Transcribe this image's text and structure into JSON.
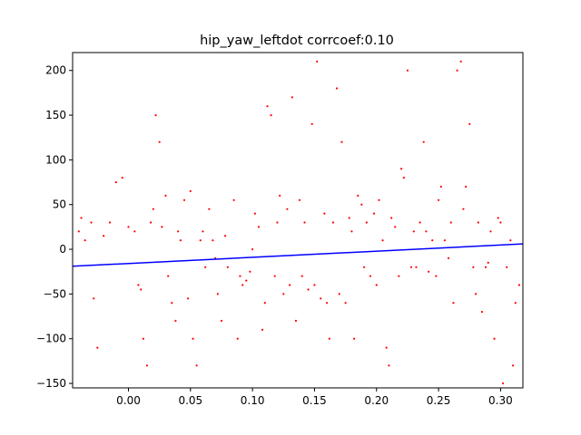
{
  "chart_data": {
    "type": "scatter",
    "title": "hip_yaw_leftdot corrcoef:0.10",
    "xlim": [
      -0.045,
      0.318
    ],
    "ylim": [
      -155,
      220
    ],
    "x_ticks": [
      0.0,
      0.05,
      0.1,
      0.15,
      0.2,
      0.25,
      0.3
    ],
    "x_tick_labels": [
      "0.00",
      "0.05",
      "0.10",
      "0.15",
      "0.20",
      "0.25",
      "0.30"
    ],
    "y_ticks": [
      -150,
      -100,
      -50,
      0,
      50,
      100,
      150,
      200
    ],
    "y_tick_labels": [
      "−150",
      "−100",
      "−50",
      "0",
      "50",
      "100",
      "150",
      "200"
    ],
    "grid": false,
    "series": [
      {
        "kind": "scatter",
        "color": "#ff0000",
        "description_of_distribution": "dense scatter",
        "points": [
          [
            -0.04,
            20
          ],
          [
            -0.038,
            35
          ],
          [
            -0.035,
            10
          ],
          [
            -0.03,
            30
          ],
          [
            -0.028,
            -55
          ],
          [
            -0.025,
            -110
          ],
          [
            -0.02,
            15
          ],
          [
            -0.015,
            30
          ],
          [
            -0.01,
            75
          ],
          [
            -0.005,
            80
          ],
          [
            0.0,
            25
          ],
          [
            0.005,
            20
          ],
          [
            0.008,
            -40
          ],
          [
            0.01,
            -45
          ],
          [
            0.012,
            -100
          ],
          [
            0.015,
            -130
          ],
          [
            0.018,
            30
          ],
          [
            0.02,
            45
          ],
          [
            0.022,
            150
          ],
          [
            0.025,
            120
          ],
          [
            0.027,
            25
          ],
          [
            0.03,
            60
          ],
          [
            0.032,
            -30
          ],
          [
            0.035,
            -60
          ],
          [
            0.038,
            -80
          ],
          [
            0.04,
            20
          ],
          [
            0.042,
            10
          ],
          [
            0.045,
            55
          ],
          [
            0.048,
            -55
          ],
          [
            0.05,
            65
          ],
          [
            0.052,
            -100
          ],
          [
            0.055,
            -130
          ],
          [
            0.058,
            10
          ],
          [
            0.06,
            20
          ],
          [
            0.062,
            -20
          ],
          [
            0.065,
            45
          ],
          [
            0.068,
            10
          ],
          [
            0.07,
            -10
          ],
          [
            0.072,
            -50
          ],
          [
            0.075,
            -80
          ],
          [
            0.078,
            15
          ],
          [
            0.08,
            -20
          ],
          [
            0.085,
            55
          ],
          [
            0.088,
            -100
          ],
          [
            0.09,
            -30
          ],
          [
            0.092,
            -40
          ],
          [
            0.095,
            -35
          ],
          [
            0.098,
            -25
          ],
          [
            0.1,
            0
          ],
          [
            0.102,
            40
          ],
          [
            0.105,
            25
          ],
          [
            0.108,
            -90
          ],
          [
            0.11,
            -60
          ],
          [
            0.112,
            160
          ],
          [
            0.115,
            150
          ],
          [
            0.118,
            -30
          ],
          [
            0.12,
            30
          ],
          [
            0.122,
            60
          ],
          [
            0.125,
            -50
          ],
          [
            0.128,
            45
          ],
          [
            0.13,
            -40
          ],
          [
            0.132,
            170
          ],
          [
            0.135,
            -80
          ],
          [
            0.138,
            55
          ],
          [
            0.14,
            -30
          ],
          [
            0.142,
            30
          ],
          [
            0.145,
            -45
          ],
          [
            0.148,
            140
          ],
          [
            0.15,
            -40
          ],
          [
            0.152,
            210
          ],
          [
            0.155,
            -55
          ],
          [
            0.158,
            40
          ],
          [
            0.16,
            -60
          ],
          [
            0.162,
            -100
          ],
          [
            0.165,
            30
          ],
          [
            0.168,
            180
          ],
          [
            0.17,
            -50
          ],
          [
            0.172,
            120
          ],
          [
            0.175,
            -60
          ],
          [
            0.178,
            35
          ],
          [
            0.18,
            20
          ],
          [
            0.182,
            -100
          ],
          [
            0.185,
            60
          ],
          [
            0.188,
            50
          ],
          [
            0.19,
            -20
          ],
          [
            0.192,
            30
          ],
          [
            0.195,
            -30
          ],
          [
            0.198,
            40
          ],
          [
            0.2,
            -40
          ],
          [
            0.202,
            55
          ],
          [
            0.205,
            10
          ],
          [
            0.208,
            -110
          ],
          [
            0.21,
            -130
          ],
          [
            0.212,
            35
          ],
          [
            0.215,
            25
          ],
          [
            0.218,
            -30
          ],
          [
            0.22,
            90
          ],
          [
            0.222,
            80
          ],
          [
            0.225,
            200
          ],
          [
            0.228,
            -20
          ],
          [
            0.23,
            20
          ],
          [
            0.232,
            -20
          ],
          [
            0.235,
            30
          ],
          [
            0.238,
            120
          ],
          [
            0.24,
            20
          ],
          [
            0.242,
            -25
          ],
          [
            0.245,
            10
          ],
          [
            0.248,
            -30
          ],
          [
            0.25,
            55
          ],
          [
            0.252,
            70
          ],
          [
            0.255,
            10
          ],
          [
            0.258,
            -10
          ],
          [
            0.26,
            30
          ],
          [
            0.262,
            -60
          ],
          [
            0.265,
            200
          ],
          [
            0.268,
            210
          ],
          [
            0.27,
            45
          ],
          [
            0.272,
            70
          ],
          [
            0.275,
            140
          ],
          [
            0.278,
            -20
          ],
          [
            0.28,
            -50
          ],
          [
            0.282,
            30
          ],
          [
            0.285,
            -70
          ],
          [
            0.288,
            -20
          ],
          [
            0.29,
            -15
          ],
          [
            0.292,
            20
          ],
          [
            0.295,
            -100
          ],
          [
            0.298,
            35
          ],
          [
            0.3,
            30
          ],
          [
            0.302,
            -150
          ],
          [
            0.305,
            -20
          ],
          [
            0.308,
            10
          ],
          [
            0.31,
            -130
          ],
          [
            0.312,
            -60
          ],
          [
            0.315,
            -40
          ]
        ]
      },
      {
        "kind": "line",
        "color": "#0000ff",
        "x": [
          -0.045,
          0.318
        ],
        "y": [
          -19,
          6
        ]
      }
    ]
  }
}
